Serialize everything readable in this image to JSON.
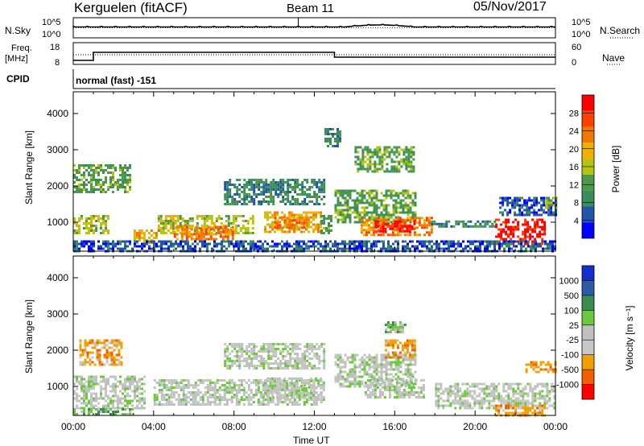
{
  "header": {
    "station": "Kerguelen (fitACF)",
    "beam": "Beam 11",
    "date": "05/Nov/2017"
  },
  "nsky_panel": {
    "left_label": "N.Sky",
    "right_label": "N.Search",
    "left_ticks": [
      "10^5",
      "10^0"
    ],
    "right_ticks": [
      "10^5",
      "10^0"
    ]
  },
  "freq_panel": {
    "left_label_1": "Freq.",
    "left_label_2": "[MHz]",
    "right_label": "Nave",
    "left_ticks": [
      "18",
      "8"
    ],
    "right_ticks": [
      "60",
      "0"
    ]
  },
  "cpid": {
    "label": "CPID",
    "value": "normal (fast) -151"
  },
  "colors": {
    "power": [
      "#0000ff",
      "#2155a8",
      "#3c8c5a",
      "#4a9a4a",
      "#b4c414",
      "#f0b000",
      "#f07800",
      "#ff4000",
      "#ff0000"
    ],
    "velocity": [
      "#1030c8",
      "#2b5aa8",
      "#3e8a52",
      "#6cc83c",
      "#c0c0c0",
      "#c8c8c8",
      "#f0a000",
      "#f06000",
      "#ff0000"
    ]
  },
  "chart_data": [
    {
      "type": "heatmap",
      "name": "power",
      "ylabel": "Slant Range [km]",
      "yticks": [
        "1000",
        "2000",
        "3000",
        "4000"
      ],
      "ylim": [
        200,
        4600
      ],
      "xlim": [
        "00:00",
        "24:00"
      ],
      "colorbar_label": "Power [dB]",
      "colorbar_ticks": [
        "4",
        "8",
        "12",
        "16",
        "20",
        "24",
        "28"
      ],
      "colorbar_range": [
        0,
        32
      ],
      "regions": [
        {
          "t0": 0.0,
          "t1": 2.8,
          "r0": 1800,
          "r1": 2600,
          "level": 3
        },
        {
          "t0": 0.0,
          "t1": 1.8,
          "r0": 700,
          "r1": 1200,
          "level": 4
        },
        {
          "t0": 3.0,
          "t1": 4.2,
          "r0": 400,
          "r1": 800,
          "level": 5
        },
        {
          "t0": 4.2,
          "t1": 9.0,
          "r0": 700,
          "r1": 1200,
          "level": 4
        },
        {
          "t0": 5.0,
          "t1": 8.0,
          "r0": 550,
          "r1": 900,
          "level": 6
        },
        {
          "t0": 9.5,
          "t1": 12.3,
          "r0": 750,
          "r1": 1300,
          "level": 5
        },
        {
          "t0": 10.0,
          "t1": 11.6,
          "r0": 850,
          "r1": 1150,
          "level": 6
        },
        {
          "t0": 12.3,
          "t1": 12.9,
          "r0": 700,
          "r1": 1200,
          "level": 3
        },
        {
          "t0": 7.5,
          "t1": 12.5,
          "r0": 1500,
          "r1": 2200,
          "level": 2
        },
        {
          "t0": 13.0,
          "t1": 17.0,
          "r0": 1000,
          "r1": 1900,
          "level": 3
        },
        {
          "t0": 14.0,
          "t1": 17.0,
          "r0": 2400,
          "r1": 3100,
          "level": 3
        },
        {
          "t0": 12.5,
          "t1": 13.3,
          "r0": 3100,
          "r1": 3600,
          "level": 2
        },
        {
          "t0": 14.3,
          "t1": 17.8,
          "r0": 650,
          "r1": 1150,
          "level": 6
        },
        {
          "t0": 15.0,
          "t1": 17.0,
          "r0": 750,
          "r1": 1050,
          "level": 8
        },
        {
          "t0": 17.8,
          "t1": 21.0,
          "r0": 850,
          "r1": 1050,
          "level": 2
        },
        {
          "t0": 21.0,
          "t1": 23.5,
          "r0": 400,
          "r1": 1100,
          "level": 8
        },
        {
          "t0": 21.2,
          "t1": 24.0,
          "r0": 1200,
          "r1": 1700,
          "level": 1
        },
        {
          "t0": 23.5,
          "t1": 24.0,
          "r0": 1400,
          "r1": 1700,
          "level": 4
        },
        {
          "t0": 0.0,
          "t1": 24.0,
          "r0": 200,
          "r1": 500,
          "level": 1
        }
      ]
    },
    {
      "type": "heatmap",
      "name": "velocity",
      "ylabel": "Slant Range [km]",
      "yticks": [
        "1000",
        "2000",
        "3000",
        "4000"
      ],
      "ylim": [
        200,
        4600
      ],
      "xlim": [
        "00:00",
        "24:00"
      ],
      "xlabel": "Time UT",
      "xticks": [
        "00:00",
        "04:00",
        "08:00",
        "12:00",
        "16:00",
        "20:00",
        "00:00"
      ],
      "colorbar_label": "Velocity [m s⁻¹]",
      "colorbar_ticks": [
        "1000",
        "500",
        "100",
        "25",
        "-25",
        "-100",
        "-500",
        "-1000"
      ],
      "colorbar_range": [
        -1000,
        1000
      ],
      "regions": [
        {
          "t0": 0.3,
          "t1": 2.4,
          "r0": 1600,
          "r1": 2300,
          "level": 6
        },
        {
          "t0": 0.0,
          "t1": 3.5,
          "r0": 400,
          "r1": 1300,
          "level": 4
        },
        {
          "t0": 4.0,
          "t1": 12.5,
          "r0": 500,
          "r1": 1200,
          "level": 4
        },
        {
          "t0": 9.5,
          "t1": 12.3,
          "r0": 650,
          "r1": 1250,
          "level": 4
        },
        {
          "t0": 7.5,
          "t1": 12.5,
          "r0": 1500,
          "r1": 2200,
          "level": 4
        },
        {
          "t0": 13.0,
          "t1": 17.0,
          "r0": 1000,
          "r1": 1900,
          "level": 4
        },
        {
          "t0": 14.5,
          "t1": 17.5,
          "r0": 700,
          "r1": 1200,
          "level": 4
        },
        {
          "t0": 15.5,
          "t1": 16.5,
          "r0": 2500,
          "r1": 2800,
          "level": 3
        },
        {
          "t0": 15.5,
          "t1": 17.0,
          "r0": 1800,
          "r1": 2300,
          "level": 6
        },
        {
          "t0": 18.0,
          "t1": 24.0,
          "r0": 400,
          "r1": 1100,
          "level": 4
        },
        {
          "t0": 21.0,
          "t1": 23.5,
          "r0": 200,
          "r1": 500,
          "level": 6
        },
        {
          "t0": 22.5,
          "t1": 24.0,
          "r0": 1400,
          "r1": 1700,
          "level": 6
        },
        {
          "t0": 0.0,
          "t1": 3.0,
          "r0": 200,
          "r1": 400,
          "level": 3
        }
      ]
    }
  ]
}
